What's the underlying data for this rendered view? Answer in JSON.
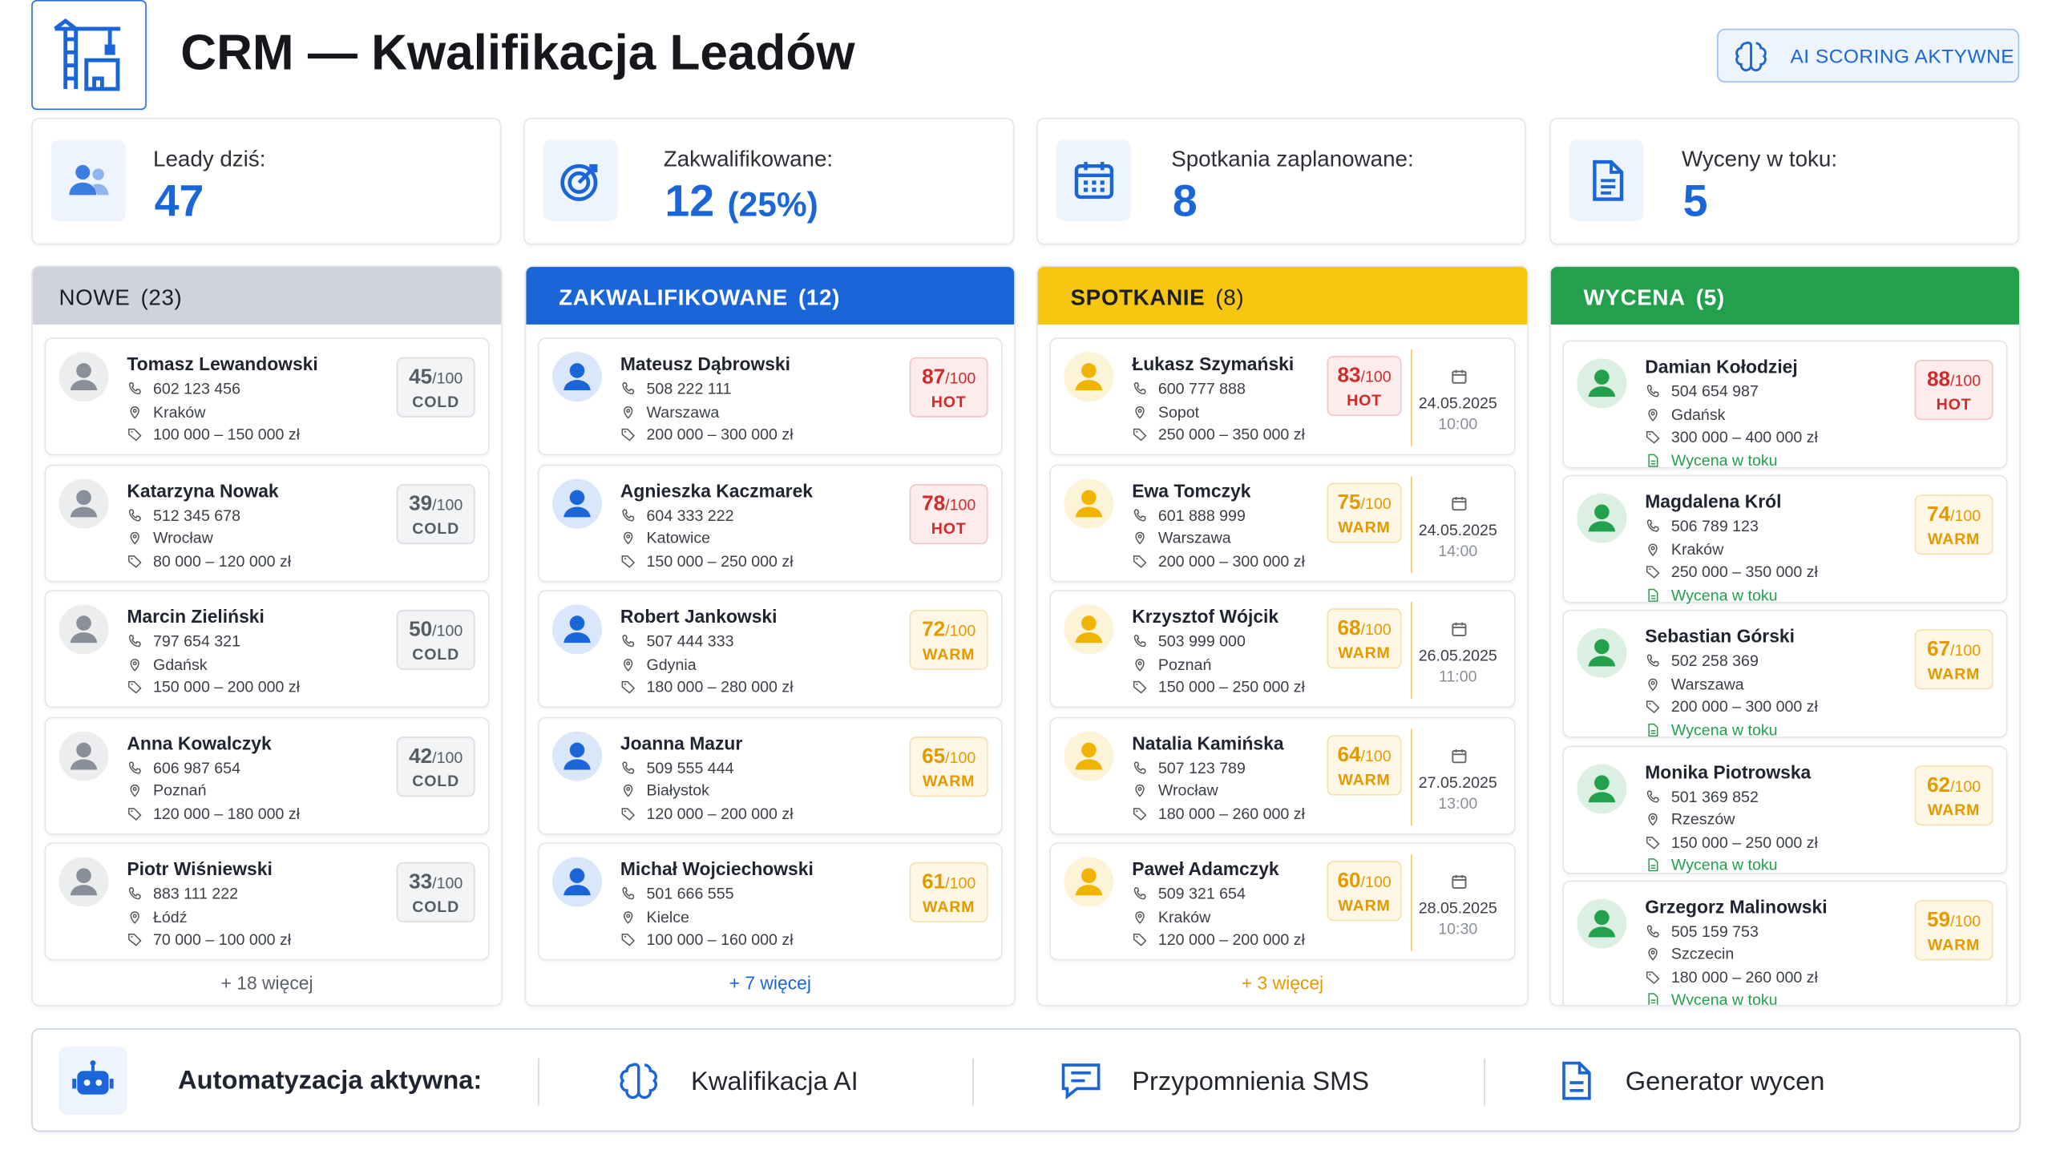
{
  "header": {
    "title": "CRM — Kwalifikacja Leadów",
    "badge": "AI SCORING AKTYWNE"
  },
  "stats": [
    {
      "label": "Leady dziś:",
      "value": 47
    },
    {
      "label": "Zakwalifikowane:",
      "value": 12,
      "extra": "(25%)"
    },
    {
      "label": "Spotkania zaplanowane:",
      "value": 8
    },
    {
      "label": "Wyceny w toku:",
      "value": 5
    }
  ],
  "score_suffix": "/100",
  "columns": [
    {
      "title": "NOWE",
      "count": "(23)",
      "color": "#8a9099",
      "header_color": "#cfd4dc",
      "more": "+ 18 więcej",
      "cards": [
        {
          "name": "Tomasz Lewandowski",
          "phone": "602 123 456",
          "city": "Kraków",
          "budget": "100 000 – 150 000 zł",
          "score": 45,
          "tier": "COLD"
        },
        {
          "name": "Katarzyna Nowak",
          "phone": "512 345 678",
          "city": "Wrocław",
          "budget": "80 000 – 120 000 zł",
          "score": 39,
          "tier": "COLD"
        },
        {
          "name": "Marcin Zieliński",
          "phone": "797 654 321",
          "city": "Gdańsk",
          "budget": "150 000 – 200 000 zł",
          "score": 50,
          "tier": "COLD"
        },
        {
          "name": "Anna Kowalczyk",
          "phone": "606 987 654",
          "city": "Poznań",
          "budget": "120 000 – 180 000 zł",
          "score": 42,
          "tier": "COLD"
        },
        {
          "name": "Piotr Wiśniewski",
          "phone": "883 111 222",
          "city": "Łódź",
          "budget": "70 000 – 100 000 zł",
          "score": 33,
          "tier": "COLD"
        }
      ]
    },
    {
      "title": "ZAKWALIFIKOWANE",
      "count": "(12)",
      "color": "#1a66d9",
      "header_color": "#1a66d9",
      "more": "+ 7 więcej",
      "cards": [
        {
          "name": "Mateusz Dąbrowski",
          "phone": "508 222 111",
          "city": "Warszawa",
          "budget": "200 000 – 300 000 zł",
          "score": 87,
          "tier": "HOT"
        },
        {
          "name": "Agnieszka Kaczmarek",
          "phone": "604 333 222",
          "city": "Katowice",
          "budget": "150 000 – 250 000 zł",
          "score": 78,
          "tier": "HOT"
        },
        {
          "name": "Robert Jankowski",
          "phone": "507 444 333",
          "city": "Gdynia",
          "budget": "180 000 – 280 000 zł",
          "score": 72,
          "tier": "WARM"
        },
        {
          "name": "Joanna Mazur",
          "phone": "509 555 444",
          "city": "Białystok",
          "budget": "120 000 – 200 000 zł",
          "score": 65,
          "tier": "WARM"
        },
        {
          "name": "Michał Wojciechowski",
          "phone": "501 666 555",
          "city": "Kielce",
          "budget": "100 000 – 160 000 zł",
          "score": 61,
          "tier": "WARM"
        }
      ]
    },
    {
      "title": "SPOTKANIE",
      "count": "(8)",
      "color": "#f0b400",
      "header_color": "#f7c60f",
      "more": "+ 3 więcej",
      "cards": [
        {
          "name": "Łukasz Szymański",
          "phone": "600 777 888",
          "city": "Sopot",
          "budget": "250 000 – 350 000 zł",
          "score": 83,
          "tier": "HOT",
          "date": "24.05.2025",
          "time": "10:00"
        },
        {
          "name": "Ewa Tomczyk",
          "phone": "601 888 999",
          "city": "Warszawa",
          "budget": "200 000 – 300 000 zł",
          "score": 75,
          "tier": "WARM",
          "date": "24.05.2025",
          "time": "14:00"
        },
        {
          "name": "Krzysztof Wójcik",
          "phone": "503 999 000",
          "city": "Poznań",
          "budget": "150 000 – 250 000 zł",
          "score": 68,
          "tier": "WARM",
          "date": "26.05.2025",
          "time": "11:00"
        },
        {
          "name": "Natalia Kamińska",
          "phone": "507 123 789",
          "city": "Wrocław",
          "budget": "180 000 – 260 000 zł",
          "score": 64,
          "tier": "WARM",
          "date": "27.05.2025",
          "time": "13:00"
        },
        {
          "name": "Paweł Adamczyk",
          "phone": "509 321 654",
          "city": "Kraków",
          "budget": "120 000 – 200 000 zł",
          "score": 60,
          "tier": "WARM",
          "date": "28.05.2025",
          "time": "10:30"
        }
      ]
    },
    {
      "title": "WYCENA",
      "count": "(5)",
      "color": "#22a04b",
      "header_color": "#22a04b",
      "cards": [
        {
          "name": "Damian Kołodziej",
          "phone": "504 654 987",
          "city": "Gdańsk",
          "budget": "300 000 – 400 000 zł",
          "score": 88,
          "tier": "HOT",
          "status": "Wycena w toku"
        },
        {
          "name": "Magdalena Król",
          "phone": "506 789 123",
          "city": "Kraków",
          "budget": "250 000 – 350 000 zł",
          "score": 74,
          "tier": "WARM",
          "status": "Wycena w toku"
        },
        {
          "name": "Sebastian Górski",
          "phone": "502 258 369",
          "city": "Warszawa",
          "budget": "200 000 – 300 000 zł",
          "score": 67,
          "tier": "WARM",
          "status": "Wycena w toku"
        },
        {
          "name": "Monika Piotrowska",
          "phone": "501 369 852",
          "city": "Rzeszów",
          "budget": "150 000 – 250 000 zł",
          "score": 62,
          "tier": "WARM",
          "status": "Wycena w toku"
        },
        {
          "name": "Grzegorz Malinowski",
          "phone": "505 159 753",
          "city": "Szczecin",
          "budget": "180 000 – 260 000 zł",
          "score": 59,
          "tier": "WARM",
          "status": "Wycena w toku"
        }
      ]
    }
  ],
  "footer": {
    "label": "Automatyzacja aktywna:",
    "items": [
      "Kwalifikacja AI",
      "Przypomnienia SMS",
      "Generator wycen"
    ]
  }
}
